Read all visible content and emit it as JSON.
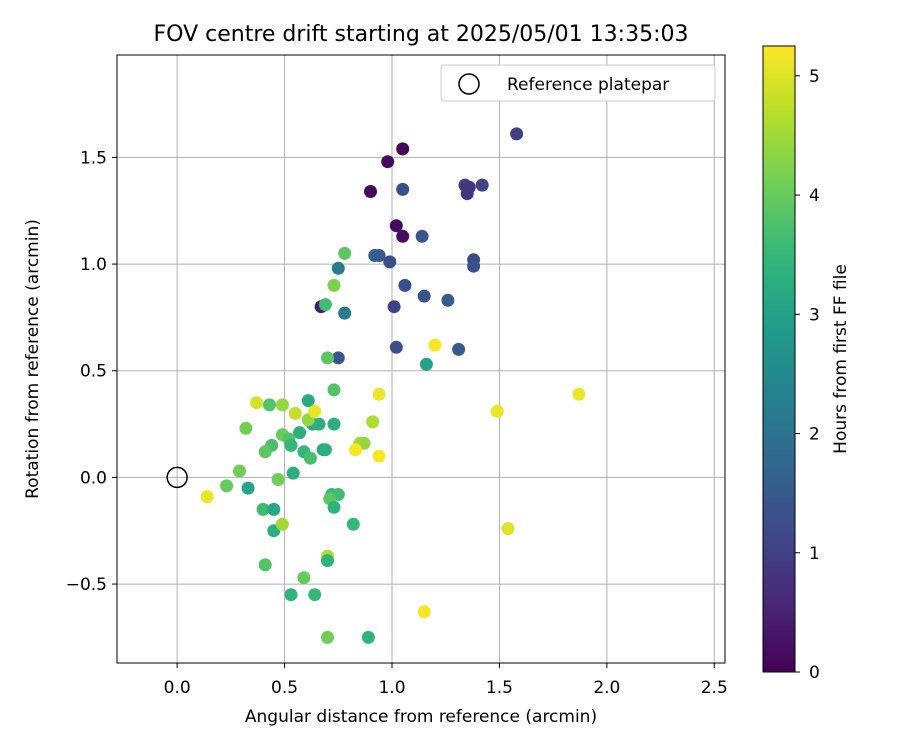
{
  "chart_data": {
    "type": "scatter",
    "title": "FOV centre drift starting at 2025/05/01 13:35:03",
    "xlabel": "Angular distance from reference (arcmin)",
    "ylabel": "Rotation from reference (arcmin)",
    "xlim": [
      -0.28,
      2.55
    ],
    "ylim": [
      -0.87,
      1.98
    ],
    "xticks": [
      "0.0",
      "0.5",
      "1.0",
      "1.5",
      "2.0",
      "2.5"
    ],
    "xtick_values": [
      0.0,
      0.5,
      1.0,
      1.5,
      2.0,
      2.5
    ],
    "yticks": [
      "−0.5",
      "0.0",
      "0.5",
      "1.0",
      "1.5"
    ],
    "ytick_values": [
      -0.5,
      0.0,
      0.5,
      1.0,
      1.5
    ],
    "grid": true,
    "legend": {
      "placement": "top-right",
      "label": "Reference platepar"
    },
    "reference_point": {
      "x": 0.0,
      "y": 0.0
    },
    "colorbar": {
      "label": "Hours from first FF file",
      "colormap": "viridis",
      "range": [
        0,
        5.25
      ],
      "ticks": [
        "0",
        "1",
        "2",
        "3",
        "4",
        "5"
      ],
      "tick_values": [
        0,
        1,
        2,
        3,
        4,
        5
      ]
    },
    "viridis": [
      "#440154",
      "#482878",
      "#3e4989",
      "#31688e",
      "#26828e",
      "#1f9e89",
      "#35b779",
      "#6ece58",
      "#b5de2b",
      "#fde725"
    ],
    "points": [
      {
        "x": 1.05,
        "y": 1.54,
        "h": 0.05
      },
      {
        "x": 0.98,
        "y": 1.48,
        "h": 0.1
      },
      {
        "x": 0.9,
        "y": 1.34,
        "h": 0.1
      },
      {
        "x": 1.02,
        "y": 1.18,
        "h": 0.15
      },
      {
        "x": 1.05,
        "y": 1.13,
        "h": 0.2
      },
      {
        "x": 0.67,
        "y": 0.8,
        "h": 0.4
      },
      {
        "x": 1.58,
        "y": 1.61,
        "h": 1.0
      },
      {
        "x": 1.34,
        "y": 1.37,
        "h": 0.9
      },
      {
        "x": 1.36,
        "y": 1.36,
        "h": 0.85
      },
      {
        "x": 1.35,
        "y": 1.33,
        "h": 0.85
      },
      {
        "x": 1.42,
        "y": 1.37,
        "h": 1.1
      },
      {
        "x": 1.05,
        "y": 1.35,
        "h": 1.3
      },
      {
        "x": 1.14,
        "y": 1.13,
        "h": 1.4
      },
      {
        "x": 0.92,
        "y": 1.04,
        "h": 1.6
      },
      {
        "x": 0.94,
        "y": 1.04,
        "h": 1.5
      },
      {
        "x": 0.99,
        "y": 1.01,
        "h": 1.3
      },
      {
        "x": 1.38,
        "y": 1.02,
        "h": 1.2
      },
      {
        "x": 1.38,
        "y": 0.99,
        "h": 1.3
      },
      {
        "x": 1.06,
        "y": 0.9,
        "h": 1.3
      },
      {
        "x": 1.01,
        "y": 0.8,
        "h": 1.0
      },
      {
        "x": 1.15,
        "y": 0.85,
        "h": 1.4
      },
      {
        "x": 1.26,
        "y": 0.83,
        "h": 1.5
      },
      {
        "x": 1.02,
        "y": 0.61,
        "h": 1.3
      },
      {
        "x": 1.31,
        "y": 0.6,
        "h": 1.5
      },
      {
        "x": 0.75,
        "y": 0.56,
        "h": 1.4
      },
      {
        "x": 0.75,
        "y": 0.98,
        "h": 2.2
      },
      {
        "x": 0.78,
        "y": 0.77,
        "h": 2.2
      },
      {
        "x": 0.78,
        "y": 1.05,
        "h": 3.9
      },
      {
        "x": 0.73,
        "y": 0.9,
        "h": 4.2
      },
      {
        "x": 0.69,
        "y": 0.81,
        "h": 3.6
      },
      {
        "x": 0.7,
        "y": 0.56,
        "h": 3.9
      },
      {
        "x": 1.16,
        "y": 0.53,
        "h": 3.0
      },
      {
        "x": 0.73,
        "y": 0.41,
        "h": 3.8
      },
      {
        "x": 0.61,
        "y": 0.36,
        "h": 3.2
      },
      {
        "x": 0.63,
        "y": 0.25,
        "h": 3.2
      },
      {
        "x": 0.66,
        "y": 0.25,
        "h": 3.3
      },
      {
        "x": 0.73,
        "y": 0.25,
        "h": 3.3
      },
      {
        "x": 0.57,
        "y": 0.21,
        "h": 3.3
      },
      {
        "x": 0.43,
        "y": 0.34,
        "h": 3.8
      },
      {
        "x": 0.37,
        "y": 0.35,
        "h": 4.9
      },
      {
        "x": 0.49,
        "y": 0.34,
        "h": 4.4
      },
      {
        "x": 0.55,
        "y": 0.3,
        "h": 4.8
      },
      {
        "x": 0.61,
        "y": 0.27,
        "h": 4.4
      },
      {
        "x": 0.64,
        "y": 0.31,
        "h": 5.1
      },
      {
        "x": 0.32,
        "y": 0.23,
        "h": 4.1
      },
      {
        "x": 0.44,
        "y": 0.15,
        "h": 3.7
      },
      {
        "x": 0.41,
        "y": 0.12,
        "h": 3.9
      },
      {
        "x": 0.49,
        "y": 0.2,
        "h": 4.0
      },
      {
        "x": 0.52,
        "y": 0.18,
        "h": 3.8
      },
      {
        "x": 0.53,
        "y": 0.15,
        "h": 3.5
      },
      {
        "x": 0.59,
        "y": 0.12,
        "h": 3.5
      },
      {
        "x": 0.62,
        "y": 0.09,
        "h": 3.7
      },
      {
        "x": 0.68,
        "y": 0.13,
        "h": 3.2
      },
      {
        "x": 0.69,
        "y": 0.13,
        "h": 3.3
      },
      {
        "x": 0.29,
        "y": 0.03,
        "h": 4.1
      },
      {
        "x": 0.54,
        "y": 0.02,
        "h": 3.3
      },
      {
        "x": 0.47,
        "y": -0.01,
        "h": 4.1
      },
      {
        "x": 0.85,
        "y": 0.16,
        "h": 4.5
      },
      {
        "x": 0.87,
        "y": 0.16,
        "h": 4.4
      },
      {
        "x": 0.83,
        "y": 0.13,
        "h": 5.2
      },
      {
        "x": 0.94,
        "y": 0.1,
        "h": 5.2
      },
      {
        "x": 0.91,
        "y": 0.26,
        "h": 4.6
      },
      {
        "x": 0.94,
        "y": 0.39,
        "h": 5.1
      },
      {
        "x": 1.2,
        "y": 0.62,
        "h": 5.2
      },
      {
        "x": 1.49,
        "y": 0.31,
        "h": 5.1
      },
      {
        "x": 1.87,
        "y": 0.39,
        "h": 5.1
      },
      {
        "x": 0.14,
        "y": -0.09,
        "h": 5.1
      },
      {
        "x": 0.23,
        "y": -0.04,
        "h": 4.0
      },
      {
        "x": 0.33,
        "y": -0.05,
        "h": 3.1
      },
      {
        "x": 0.4,
        "y": -0.15,
        "h": 3.6
      },
      {
        "x": 0.45,
        "y": -0.15,
        "h": 3.1
      },
      {
        "x": 0.45,
        "y": -0.25,
        "h": 3.3
      },
      {
        "x": 0.49,
        "y": -0.22,
        "h": 4.5
      },
      {
        "x": 0.72,
        "y": -0.08,
        "h": 3.5
      },
      {
        "x": 0.75,
        "y": -0.08,
        "h": 3.6
      },
      {
        "x": 0.71,
        "y": -0.1,
        "h": 3.9
      },
      {
        "x": 0.73,
        "y": -0.14,
        "h": 3.4
      },
      {
        "x": 0.82,
        "y": -0.22,
        "h": 3.5
      },
      {
        "x": 0.41,
        "y": -0.41,
        "h": 3.8
      },
      {
        "x": 0.7,
        "y": -0.37,
        "h": 4.6
      },
      {
        "x": 0.7,
        "y": -0.39,
        "h": 3.4
      },
      {
        "x": 0.59,
        "y": -0.47,
        "h": 4.0
      },
      {
        "x": 0.53,
        "y": -0.55,
        "h": 3.4
      },
      {
        "x": 0.64,
        "y": -0.55,
        "h": 3.5
      },
      {
        "x": 0.7,
        "y": -0.75,
        "h": 4.1
      },
      {
        "x": 0.89,
        "y": -0.75,
        "h": 3.4
      },
      {
        "x": 1.15,
        "y": -0.63,
        "h": 5.2
      },
      {
        "x": 1.54,
        "y": -0.24,
        "h": 5.0
      }
    ]
  }
}
